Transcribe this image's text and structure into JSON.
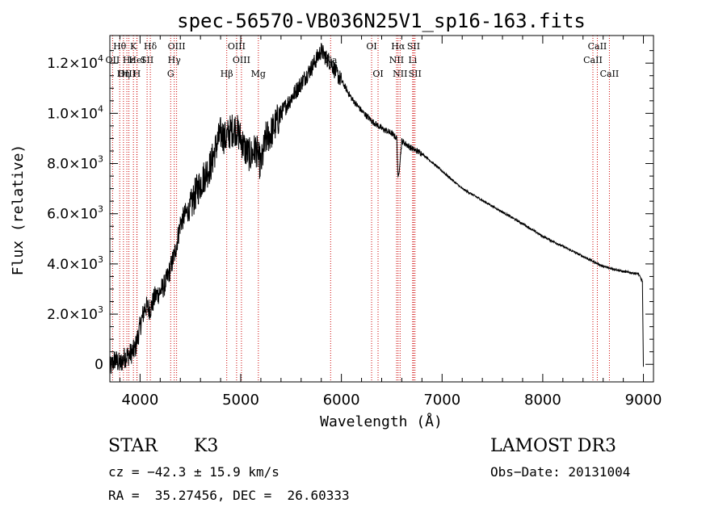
{
  "chart_data": {
    "type": "line",
    "title": "spec-56570-VB036N25V1_sp16-163.fits",
    "xlabel": "Wavelength (Å)",
    "ylabel": "Flux (relative)",
    "xlim": [
      3700,
      9100
    ],
    "ylim": [
      -700,
      13100
    ],
    "x_ticks": [
      4000,
      5000,
      6000,
      7000,
      8000,
      9000
    ],
    "x_tick_labels": [
      "4000",
      "5000",
      "6000",
      "7000",
      "8000",
      "9000"
    ],
    "y_ticks": [
      0,
      2000,
      4000,
      6000,
      8000,
      10000,
      12000
    ],
    "y_tick_labels": [
      {
        "mantissa": "0",
        "exp": ""
      },
      {
        "mantissa": "2.0×10",
        "exp": "3"
      },
      {
        "mantissa": "4.0×10",
        "exp": "3"
      },
      {
        "mantissa": "6.0×10",
        "exp": "3"
      },
      {
        "mantissa": "8.0×10",
        "exp": "3"
      },
      {
        "mantissa": "1.0×10",
        "exp": "4"
      },
      {
        "mantissa": "1.2×10",
        "exp": "4"
      }
    ],
    "series": [
      {
        "name": "spectrum",
        "x": [
          3700,
          3750,
          3800,
          3850,
          3900,
          3950,
          4000,
          4050,
          4100,
          4150,
          4200,
          4250,
          4300,
          4350,
          4400,
          4450,
          4500,
          4550,
          4600,
          4650,
          4700,
          4750,
          4800,
          4850,
          4900,
          4950,
          5000,
          5050,
          5100,
          5150,
          5200,
          5250,
          5300,
          5400,
          5500,
          5600,
          5700,
          5800,
          5850,
          5900,
          5950,
          6000,
          6100,
          6200,
          6300,
          6400,
          6500,
          6550,
          6563,
          6600,
          6700,
          6800,
          7000,
          7200,
          7500,
          7800,
          8000,
          8200,
          8400,
          8500,
          8600,
          8800,
          8950,
          8990,
          9000
        ],
        "y": [
          -200,
          200,
          0,
          300,
          400,
          600,
          1500,
          2300,
          2200,
          2700,
          2900,
          3200,
          3800,
          4500,
          5600,
          6000,
          6200,
          6800,
          7200,
          7600,
          7900,
          8600,
          9200,
          9000,
          9300,
          9400,
          9000,
          8500,
          8300,
          8600,
          7900,
          9000,
          9200,
          10000,
          10600,
          11200,
          11800,
          12500,
          12200,
          12000,
          11600,
          11300,
          10600,
          10100,
          9700,
          9400,
          9200,
          9000,
          7300,
          8900,
          8600,
          8400,
          7700,
          7000,
          6300,
          5600,
          5100,
          4700,
          4300,
          4100,
          3900,
          3700,
          3600,
          3300,
          -100
        ]
      }
    ],
    "lines": [
      {
        "name": "Hθ",
        "wave": 3798,
        "row": 1
      },
      {
        "name": "OII",
        "wave": 3727,
        "row": 2
      },
      {
        "name": "OIII",
        "wave": 3869,
        "row": 3
      },
      {
        "name": "Hε",
        "wave": 3889,
        "row": 2
      },
      {
        "name": "Hη",
        "wave": 3835,
        "row": 3
      },
      {
        "name": "K",
        "wave": 3934,
        "row": 1
      },
      {
        "name": "HeI",
        "wave": 3970,
        "row": 2
      },
      {
        "name": "H",
        "wave": 3968,
        "row": 3
      },
      {
        "name": "Hδ",
        "wave": 4102,
        "row": 1
      },
      {
        "name": "SII",
        "wave": 4070,
        "row": 2
      },
      {
        "name": "OIII",
        "wave": 4363,
        "row": 1
      },
      {
        "name": "Hγ",
        "wave": 4340,
        "row": 2
      },
      {
        "name": "G",
        "wave": 4304,
        "row": 3
      },
      {
        "name": "Hβ",
        "wave": 4861,
        "row": 3
      },
      {
        "name": "OIII",
        "wave": 4959,
        "row": 1
      },
      {
        "name": "OIII",
        "wave": 5007,
        "row": 2
      },
      {
        "name": "Mg",
        "wave": 5175,
        "row": 3
      },
      {
        "name": "Na",
        "wave": 5893,
        "row": 2
      },
      {
        "name": "OI",
        "wave": 6300,
        "row": 1
      },
      {
        "name": "OI",
        "wave": 6364,
        "row": 3
      },
      {
        "name": "Hα",
        "wave": 6563,
        "row": 1
      },
      {
        "name": "NII",
        "wave": 6548,
        "row": 2
      },
      {
        "name": "NII",
        "wave": 6583,
        "row": 3
      },
      {
        "name": "SII",
        "wave": 6717,
        "row": 1
      },
      {
        "name": "Li",
        "wave": 6708,
        "row": 2
      },
      {
        "name": "SII",
        "wave": 6731,
        "row": 3
      },
      {
        "name": "CaII",
        "wave": 8542,
        "row": 1
      },
      {
        "name": "CaII",
        "wave": 8498,
        "row": 2
      },
      {
        "name": "CaII",
        "wave": 8662,
        "row": 3
      }
    ],
    "line_color": "#cc0000",
    "spectrum_color": "#000000"
  },
  "info": {
    "obj_class": "STAR",
    "subclass": "K3",
    "survey": "LAMOST DR3",
    "cz": "cz = −42.3 ± 15.9 km/s",
    "obs_date": "Obs−Date: 20131004",
    "coords": "RA =  35.27456, DEC =  26.60333"
  }
}
